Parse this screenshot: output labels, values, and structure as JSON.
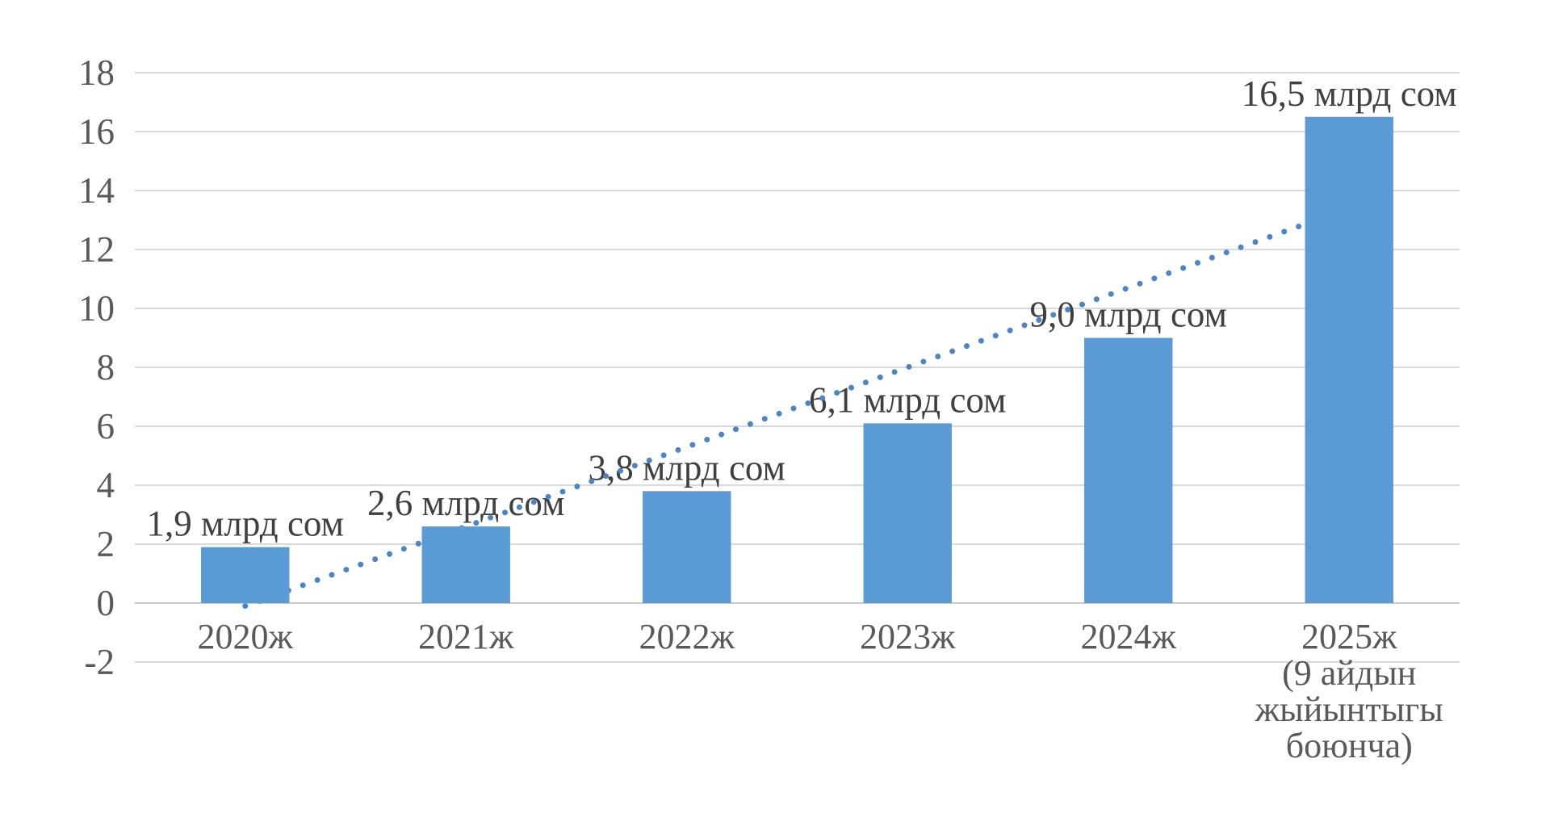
{
  "page": {
    "background": "#FFFFFF"
  },
  "chart_data": {
    "type": "bar",
    "title": "",
    "xlabel": "",
    "ylabel": "",
    "categories": [
      {
        "lines": [
          "2020ж"
        ]
      },
      {
        "lines": [
          "2021ж"
        ]
      },
      {
        "lines": [
          "2022ж"
        ]
      },
      {
        "lines": [
          "2023ж"
        ]
      },
      {
        "lines": [
          "2024ж"
        ]
      },
      {
        "lines": [
          "2025ж",
          "(9 айдын",
          "жыйынтыгы",
          "боюнча)"
        ]
      }
    ],
    "values": [
      1.9,
      2.6,
      3.8,
      6.1,
      9.0,
      16.5
    ],
    "data_labels": [
      "1,9 млрд сом",
      "2,6 млрд сом",
      "3,8 млрд сом",
      "6,1 млрд сом",
      "9,0 млрд сом",
      "16,5 млрд сом"
    ],
    "yticks": [
      -2,
      0,
      2,
      4,
      6,
      8,
      10,
      12,
      14,
      16,
      18
    ],
    "ylim": [
      -2,
      18
    ],
    "grid": true,
    "legend": "none",
    "trendline": {
      "style": "dotted",
      "shape": "linear",
      "start_value": -0.1,
      "end_value": 13.4
    },
    "colors": {
      "bar": "#5B9BD5",
      "trend": "#4A86C7",
      "gridline": "#D9D9D9",
      "zero_axis": "#C9C9C9",
      "tick_text": "#595959",
      "category_text": "#595959",
      "data_label_text": "#404040",
      "background": "#FFFFFF"
    }
  }
}
